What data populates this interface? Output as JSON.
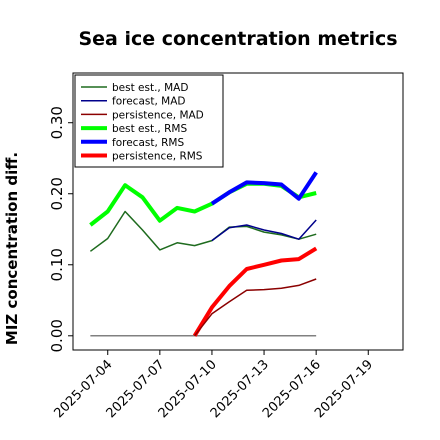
{
  "chart_data": {
    "type": "line",
    "title": "Sea ice concentration metrics",
    "ylabel": "MIZ concentration diff.",
    "xlabel": "",
    "xlim": [
      "2025-07-02",
      "2025-07-21"
    ],
    "ylim": [
      -0.02,
      0.37
    ],
    "yticks": [
      0.0,
      0.1,
      0.2,
      0.3
    ],
    "ytick_labels": [
      "0.00",
      "0.10",
      "0.20",
      "0.30"
    ],
    "xticks": [
      "2025-07-04",
      "2025-07-07",
      "2025-07-10",
      "2025-07-13",
      "2025-07-16",
      "2025-07-19"
    ],
    "highlight_tick": "2025-07-10",
    "highlight_color": "#228b22",
    "legend_position": "upper-left",
    "grid": false,
    "series": [
      {
        "name": "best est., MAD",
        "color": "#1e6b1e",
        "linewidth": 1.5,
        "x": [
          "2025-07-03",
          "2025-07-04",
          "2025-07-05",
          "2025-07-06",
          "2025-07-07",
          "2025-07-08",
          "2025-07-09",
          "2025-07-10",
          "2025-07-11",
          "2025-07-12",
          "2025-07-13",
          "2025-07-14",
          "2025-07-15",
          "2025-07-16"
        ],
        "values": [
          0.119,
          0.137,
          0.175,
          0.149,
          0.121,
          0.131,
          0.127,
          0.134,
          0.153,
          0.154,
          0.146,
          0.142,
          0.136,
          0.143
        ]
      },
      {
        "name": "forecast,  MAD",
        "color": "#00008b",
        "linewidth": 1.5,
        "x": [
          "2025-07-10",
          "2025-07-11",
          "2025-07-12",
          "2025-07-13",
          "2025-07-14",
          "2025-07-15",
          "2025-07-16"
        ],
        "values": [
          0.134,
          0.152,
          0.156,
          0.149,
          0.144,
          0.136,
          0.163
        ]
      },
      {
        "name": "persistence, MAD",
        "color": "#8b0000",
        "linewidth": 1.5,
        "x": [
          "2025-07-09",
          "2025-07-10",
          "2025-07-11",
          "2025-07-12",
          "2025-07-13",
          "2025-07-14",
          "2025-07-15",
          "2025-07-16"
        ],
        "values": [
          0.0,
          0.031,
          0.048,
          0.064,
          0.065,
          0.067,
          0.071,
          0.08
        ]
      },
      {
        "name": "best est., RMS",
        "color": "#00ff00",
        "linewidth": 4,
        "x": [
          "2025-07-03",
          "2025-07-04",
          "2025-07-05",
          "2025-07-06",
          "2025-07-07",
          "2025-07-08",
          "2025-07-09",
          "2025-07-10",
          "2025-07-11",
          "2025-07-12",
          "2025-07-13",
          "2025-07-14",
          "2025-07-15",
          "2025-07-16"
        ],
        "values": [
          0.156,
          0.175,
          0.212,
          0.195,
          0.162,
          0.18,
          0.175,
          0.186,
          0.202,
          0.214,
          0.214,
          0.211,
          0.195,
          0.201
        ]
      },
      {
        "name": "forecast,  RMS",
        "color": "#0000ff",
        "linewidth": 4,
        "x": [
          "2025-07-10",
          "2025-07-11",
          "2025-07-12",
          "2025-07-13",
          "2025-07-14",
          "2025-07-15",
          "2025-07-16"
        ],
        "values": [
          0.186,
          0.202,
          0.216,
          0.215,
          0.213,
          0.193,
          0.23
        ]
      },
      {
        "name": "persistence, RMS",
        "color": "#ff0000",
        "linewidth": 4,
        "x": [
          "2025-07-09",
          "2025-07-10",
          "2025-07-11",
          "2025-07-12",
          "2025-07-13",
          "2025-07-14",
          "2025-07-15",
          "2025-07-16"
        ],
        "values": [
          0.0,
          0.04,
          0.07,
          0.094,
          0.1,
          0.106,
          0.108,
          0.123
        ]
      }
    ],
    "reference_line": {
      "color": "#808080",
      "y": 0.0,
      "x": [
        "2025-07-03",
        "2025-07-16"
      ]
    }
  }
}
